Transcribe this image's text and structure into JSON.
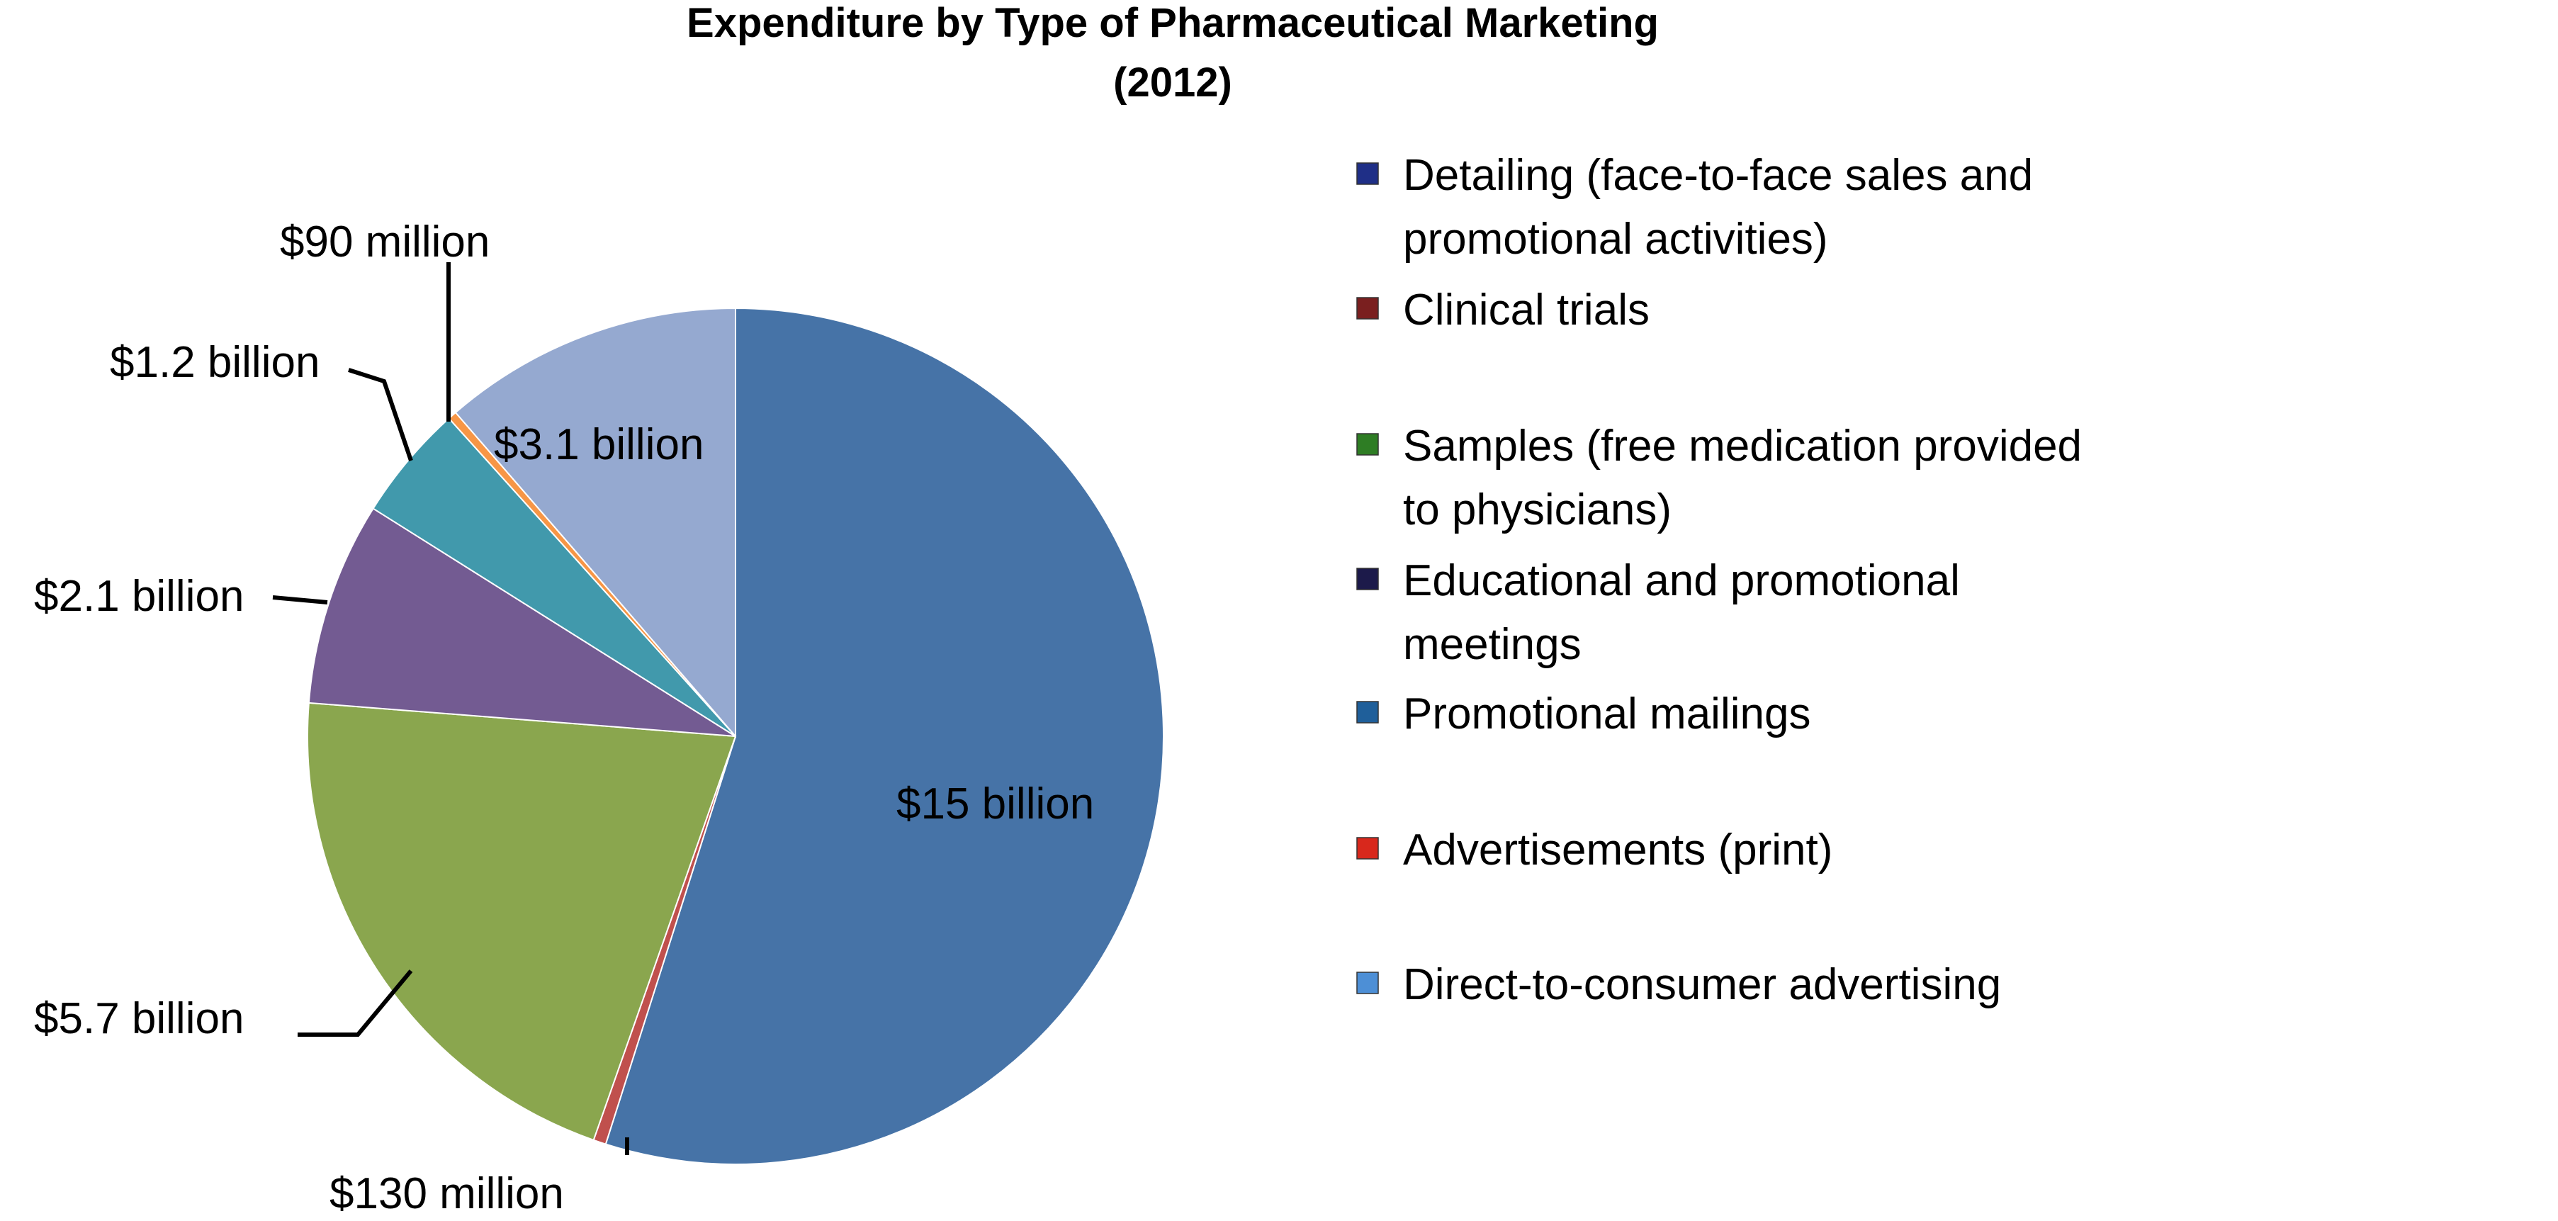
{
  "chart_data": {
    "type": "pie",
    "title": "Expenditure by Type of Pharmaceutical Marketing",
    "subtitle": "(2012)",
    "legend_position": "right",
    "slices": [
      {
        "name": "Detailing (face-to-face sales and promotional activities)",
        "value": 15000,
        "label": "$15  billion",
        "color": "#4673a7",
        "legend_color": "#1f2f87"
      },
      {
        "name": "Clinical trials",
        "value": 130,
        "label": "$130 million",
        "color": "#c0504d",
        "legend_color": "#7a1f1f"
      },
      {
        "name": "Samples (free medication provided to physicians)",
        "value": 5700,
        "label": "$5.7  billion",
        "color": "#8aa64e",
        "legend_color": "#2e7d24"
      },
      {
        "name": "Educational and promotional meetings",
        "value": 2100,
        "label": "$2.1 billion",
        "color": "#735b92",
        "legend_color": "#1c1a4a"
      },
      {
        "name": "Promotional mailings",
        "value": 1200,
        "label": "$1.2 billion",
        "color": "#4199ac",
        "legend_color": "#1f5f9a"
      },
      {
        "name": "Advertisements (print)",
        "value": 90,
        "label": "$90 million",
        "color": "#f79646",
        "legend_color": "#d8281c"
      },
      {
        "name": "Direct-to-consumer advertising",
        "value": 3100,
        "label": "$3.1 billion",
        "color": "#95a9d0",
        "legend_color": "#4d8fd6"
      }
    ]
  }
}
